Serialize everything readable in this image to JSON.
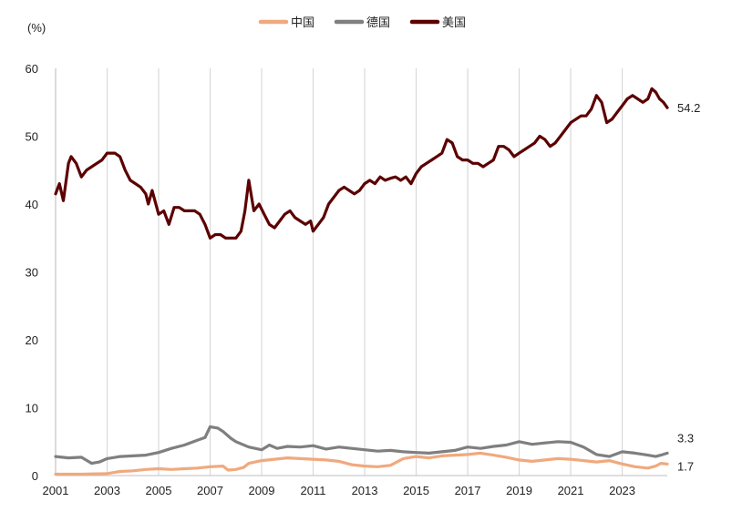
{
  "chart_data": {
    "type": "line",
    "ylabel": "(%)",
    "ylim": [
      0,
      60
    ],
    "yticks": [
      "0",
      "10",
      "20",
      "30",
      "40",
      "50",
      "60"
    ],
    "xlim": [
      2001.0,
      2024.75
    ],
    "xticks": [
      "2001",
      "2003",
      "2005",
      "2007",
      "2009",
      "2011",
      "2013",
      "2015",
      "2017",
      "2019",
      "2021",
      "2023"
    ],
    "grid": "vertical",
    "legend_position": "top",
    "colors": {
      "中国": "#f0a97e",
      "德国": "#7f7f7f",
      "美国": "#5c0000"
    },
    "series": [
      {
        "name": "中国",
        "color": "#f0a97e",
        "end_label": "1.7",
        "x": [
          2001.0,
          2002.0,
          2003.0,
          2003.5,
          2004.0,
          2004.5,
          2005.0,
          2005.5,
          2006.0,
          2006.5,
          2007.0,
          2007.5,
          2007.7,
          2008.0,
          2008.3,
          2008.5,
          2009.0,
          2009.5,
          2010.0,
          2010.5,
          2011.0,
          2011.5,
          2012.0,
          2012.5,
          2013.0,
          2013.5,
          2014.0,
          2014.5,
          2015.0,
          2015.5,
          2016.0,
          2016.5,
          2017.0,
          2017.5,
          2018.0,
          2018.5,
          2019.0,
          2019.5,
          2020.0,
          2020.5,
          2021.0,
          2021.5,
          2022.0,
          2022.5,
          2023.0,
          2023.5,
          2024.0,
          2024.3,
          2024.5,
          2024.75
        ],
        "y": [
          0.2,
          0.2,
          0.3,
          0.6,
          0.7,
          0.9,
          1.0,
          0.9,
          1.0,
          1.1,
          1.3,
          1.4,
          0.8,
          0.9,
          1.2,
          1.8,
          2.2,
          2.4,
          2.6,
          2.5,
          2.4,
          2.3,
          2.1,
          1.6,
          1.4,
          1.3,
          1.5,
          2.5,
          2.8,
          2.6,
          2.9,
          3.0,
          3.1,
          3.3,
          3.0,
          2.7,
          2.3,
          2.1,
          2.3,
          2.5,
          2.4,
          2.2,
          2.0,
          2.2,
          1.7,
          1.3,
          1.1,
          1.4,
          1.8,
          1.7
        ]
      },
      {
        "name": "德国",
        "color": "#7f7f7f",
        "end_label": "3.3",
        "x": [
          2001.0,
          2001.5,
          2002.0,
          2002.4,
          2002.7,
          2003.0,
          2003.5,
          2004.0,
          2004.5,
          2005.0,
          2005.5,
          2006.0,
          2006.5,
          2006.8,
          2007.0,
          2007.3,
          2007.5,
          2007.8,
          2008.0,
          2008.5,
          2009.0,
          2009.3,
          2009.6,
          2010.0,
          2010.5,
          2011.0,
          2011.5,
          2012.0,
          2012.5,
          2013.0,
          2013.5,
          2014.0,
          2014.5,
          2015.0,
          2015.5,
          2016.0,
          2016.5,
          2017.0,
          2017.5,
          2018.0,
          2018.5,
          2019.0,
          2019.5,
          2020.0,
          2020.5,
          2021.0,
          2021.5,
          2022.0,
          2022.5,
          2023.0,
          2023.5,
          2024.0,
          2024.3,
          2024.5,
          2024.75
        ],
        "y": [
          2.8,
          2.6,
          2.7,
          1.8,
          2.0,
          2.5,
          2.8,
          2.9,
          3.0,
          3.4,
          4.0,
          4.5,
          5.2,
          5.6,
          7.2,
          7.0,
          6.5,
          5.5,
          5.0,
          4.2,
          3.8,
          4.5,
          4.0,
          4.3,
          4.2,
          4.4,
          3.9,
          4.2,
          4.0,
          3.8,
          3.6,
          3.7,
          3.5,
          3.4,
          3.3,
          3.5,
          3.7,
          4.2,
          4.0,
          4.3,
          4.5,
          5.0,
          4.6,
          4.8,
          5.0,
          4.9,
          4.2,
          3.1,
          2.8,
          3.5,
          3.3,
          3.0,
          2.8,
          3.0,
          3.3
        ]
      },
      {
        "name": "美国",
        "color": "#5c0000",
        "end_label": "54.2",
        "x": [
          2001.0,
          2001.15,
          2001.3,
          2001.5,
          2001.6,
          2001.8,
          2002.0,
          2002.2,
          2002.4,
          2002.6,
          2002.8,
          2003.0,
          2003.3,
          2003.5,
          2003.7,
          2003.9,
          2004.1,
          2004.3,
          2004.5,
          2004.6,
          2004.75,
          2005.0,
          2005.2,
          2005.4,
          2005.6,
          2005.8,
          2006.0,
          2006.2,
          2006.4,
          2006.6,
          2006.8,
          2007.0,
          2007.2,
          2007.4,
          2007.6,
          2007.8,
          2008.0,
          2008.2,
          2008.35,
          2008.5,
          2008.7,
          2008.9,
          2009.1,
          2009.3,
          2009.5,
          2009.7,
          2009.9,
          2010.1,
          2010.3,
          2010.5,
          2010.7,
          2010.9,
          2011.0,
          2011.2,
          2011.4,
          2011.6,
          2011.8,
          2012.0,
          2012.2,
          2012.4,
          2012.6,
          2012.8,
          2013.0,
          2013.2,
          2013.4,
          2013.6,
          2013.8,
          2014.0,
          2014.2,
          2014.4,
          2014.6,
          2014.8,
          2015.0,
          2015.2,
          2015.4,
          2015.6,
          2015.8,
          2016.0,
          2016.2,
          2016.4,
          2016.6,
          2016.8,
          2017.0,
          2017.2,
          2017.4,
          2017.6,
          2017.8,
          2018.0,
          2018.2,
          2018.4,
          2018.6,
          2018.8,
          2019.0,
          2019.2,
          2019.4,
          2019.6,
          2019.8,
          2020.0,
          2020.2,
          2020.4,
          2020.6,
          2020.8,
          2021.0,
          2021.2,
          2021.4,
          2021.6,
          2021.8,
          2022.0,
          2022.2,
          2022.4,
          2022.6,
          2022.8,
          2023.0,
          2023.2,
          2023.4,
          2023.6,
          2023.8,
          2024.0,
          2024.15,
          2024.3,
          2024.45,
          2024.6,
          2024.75
        ],
        "y": [
          41.5,
          43.0,
          40.5,
          46.0,
          47.0,
          46.0,
          44.0,
          45.0,
          45.5,
          46.0,
          46.5,
          47.5,
          47.5,
          47.0,
          45.0,
          43.5,
          43.0,
          42.5,
          41.5,
          40.0,
          42.0,
          38.5,
          39.0,
          37.0,
          39.5,
          39.5,
          39.0,
          39.0,
          39.0,
          38.5,
          37.0,
          35.0,
          35.5,
          35.5,
          35.0,
          35.0,
          35.0,
          36.0,
          39.0,
          43.5,
          39.0,
          40.0,
          38.5,
          37.0,
          36.5,
          37.5,
          38.5,
          39.0,
          38.0,
          37.5,
          37.0,
          37.5,
          36.0,
          37.0,
          38.0,
          40.0,
          41.0,
          42.0,
          42.5,
          42.0,
          41.5,
          42.0,
          43.0,
          43.5,
          43.0,
          44.0,
          43.5,
          43.8,
          44.0,
          43.5,
          44.0,
          43.0,
          44.5,
          45.5,
          46.0,
          46.5,
          47.0,
          47.5,
          49.5,
          49.0,
          47.0,
          46.5,
          46.5,
          46.0,
          46.0,
          45.5,
          46.0,
          46.5,
          48.5,
          48.5,
          48.0,
          47.0,
          47.5,
          48.0,
          48.5,
          49.0,
          50.0,
          49.5,
          48.5,
          49.0,
          50.0,
          51.0,
          52.0,
          52.5,
          53.0,
          53.0,
          54.0,
          56.0,
          55.0,
          52.0,
          52.5,
          53.5,
          54.5,
          55.5,
          56.0,
          55.5,
          55.0,
          55.5,
          57.0,
          56.5,
          55.5,
          55.0,
          54.2
        ]
      }
    ]
  }
}
